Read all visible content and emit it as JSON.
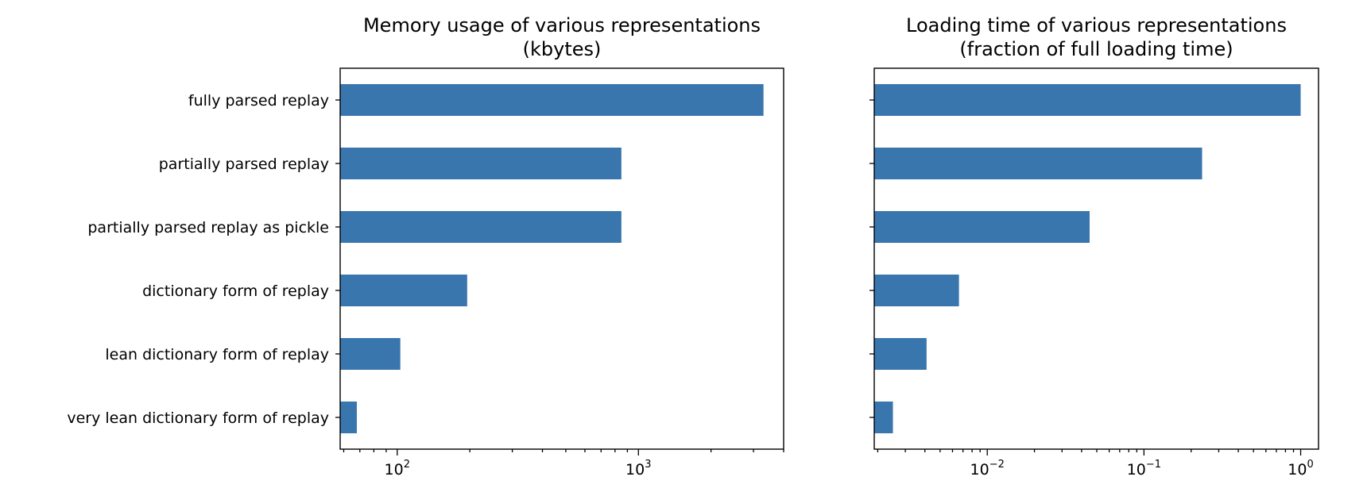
{
  "chart_data": [
    {
      "type": "bar",
      "orientation": "horizontal",
      "title": [
        "Memory usage of various representations",
        "(kbytes)"
      ],
      "xscale": "log",
      "xlim": [
        58,
        4000
      ],
      "xticks": [
        {
          "value": 100,
          "base": "10",
          "exp": "2"
        },
        {
          "value": 1000,
          "base": "10",
          "exp": "3"
        }
      ],
      "categories": [
        "fully parsed replay",
        "partially parsed replay",
        "partially parsed replay as pickle",
        "dictionary form of replay",
        "lean dictionary form of replay",
        "very lean dictionary form of replay"
      ],
      "values": [
        3300,
        850,
        850,
        195,
        103,
        68
      ],
      "color": "#3a76ae"
    },
    {
      "type": "bar",
      "orientation": "horizontal",
      "title": [
        "Loading time of various representations",
        "(fraction of full loading time)"
      ],
      "xscale": "log",
      "xlim": [
        0.0019,
        1.3
      ],
      "xticks": [
        {
          "value": 0.01,
          "base": "10",
          "exp": "−2"
        },
        {
          "value": 0.1,
          "base": "10",
          "exp": "−1"
        },
        {
          "value": 1,
          "base": "10",
          "exp": "0"
        }
      ],
      "categories": [
        "fully parsed replay",
        "partially parsed replay",
        "partially parsed replay as pickle",
        "dictionary form of replay",
        "lean dictionary form of replay",
        "very lean dictionary form of replay"
      ],
      "values": [
        1.0,
        0.235,
        0.045,
        0.0066,
        0.0041,
        0.0025
      ],
      "color": "#3a76ae"
    }
  ]
}
